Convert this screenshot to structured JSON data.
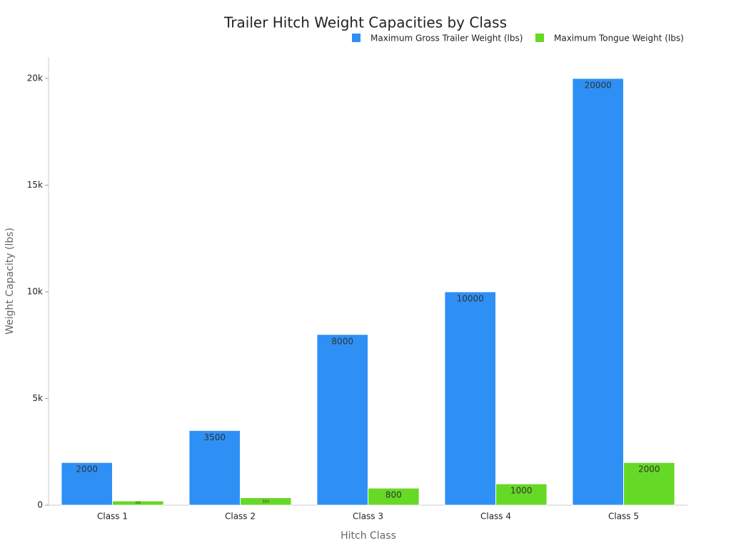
{
  "chart_data": {
    "type": "bar",
    "title": "Trailer Hitch Weight Capacities by Class",
    "x_label": "Hitch Class",
    "y_label": "Weight Capacity (lbs)",
    "categories": [
      "Class 1",
      "Class 2",
      "Class 3",
      "Class 4",
      "Class 5"
    ],
    "series": [
      {
        "name": "Maximum Gross Trailer Weight (lbs)",
        "color": "#2e90f5",
        "values": [
          2000,
          3500,
          8000,
          10000,
          20000
        ]
      },
      {
        "name": "Maximum Tongue Weight (lbs)",
        "color": "#66d926",
        "values": [
          200,
          350,
          800,
          1000,
          2000
        ]
      }
    ],
    "ylim": [
      0,
      21000
    ],
    "yticks": [
      0,
      {
        "value": 5000,
        "label": "5k"
      },
      {
        "value": 10000,
        "label": "10k"
      },
      {
        "value": 15000,
        "label": "15k"
      },
      {
        "value": 20000,
        "label": "20k"
      }
    ],
    "grid": false,
    "legend": "top-right"
  }
}
